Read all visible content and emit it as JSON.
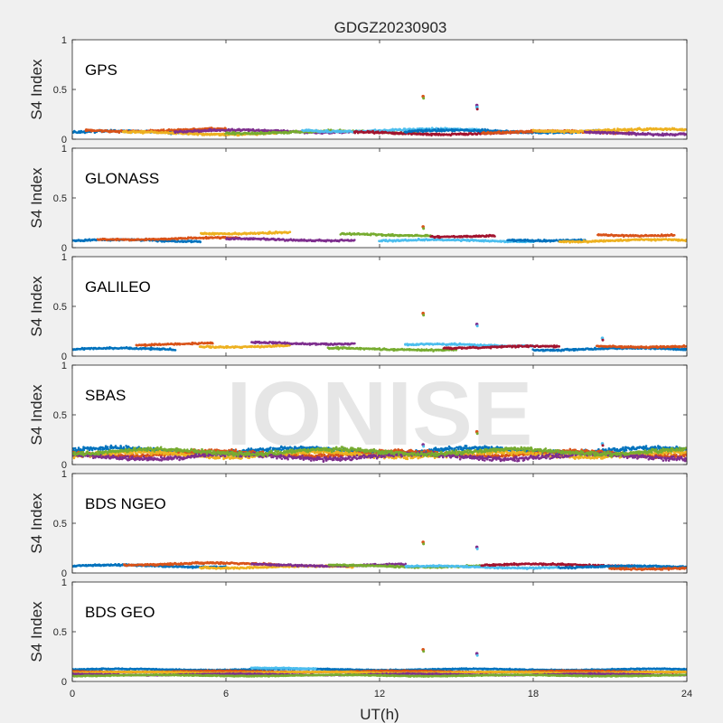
{
  "chart_data": {
    "type": "scatter",
    "title": "GDGZ20230903",
    "xlabel": "UT(h)",
    "ylabel": "S4 Index",
    "xlim": [
      0,
      24
    ],
    "ylim": [
      0,
      1
    ],
    "xticks": [
      "0",
      "6",
      "12",
      "18",
      "24"
    ],
    "yticks": [
      "0",
      "0.5",
      "1"
    ],
    "watermark": "IONISE",
    "grid": false,
    "palette": [
      "#0072BD",
      "#D95319",
      "#EDB120",
      "#7E2F8E",
      "#77AC30",
      "#4DBEEE",
      "#A2142F"
    ],
    "panels": [
      {
        "label": "GPS",
        "baseline": 0.08,
        "noise": 0.025,
        "segments": [
          {
            "x": [
              0,
              4.5
            ],
            "y": 0.07
          },
          {
            "x": [
              0.5,
              6
            ],
            "y": 0.09
          },
          {
            "x": [
              2,
              8
            ],
            "y": 0.06
          },
          {
            "x": [
              4,
              11
            ],
            "y": 0.08
          },
          {
            "x": [
              6,
              13.5
            ],
            "y": 0.07
          },
          {
            "x": [
              9,
              16
            ],
            "y": 0.09
          },
          {
            "x": [
              11,
              18
            ],
            "y": 0.06
          },
          {
            "x": [
              13,
              20.5
            ],
            "y": 0.08
          },
          {
            "x": [
              16,
              22
            ],
            "y": 0.07
          },
          {
            "x": [
              18,
              24
            ],
            "y": 0.09
          },
          {
            "x": [
              20,
              24
            ],
            "y": 0.06
          }
        ],
        "outliers": [
          {
            "x": 13.7,
            "y": 0.43
          },
          {
            "x": 15.8,
            "y": 0.34
          },
          {
            "x": 15.8,
            "y": 0.32
          }
        ]
      },
      {
        "label": "GLONASS",
        "baseline": 0.08,
        "noise": 0.02,
        "segments": [
          {
            "x": [
              0,
              5
            ],
            "y": 0.07
          },
          {
            "x": [
              1,
              6.5
            ],
            "y": 0.09
          },
          {
            "x": [
              5,
              8.5
            ],
            "y": 0.15
          },
          {
            "x": [
              6,
              11
            ],
            "y": 0.08
          },
          {
            "x": [
              10.5,
              14
            ],
            "y": 0.13
          },
          {
            "x": [
              12,
              18
            ],
            "y": 0.07
          },
          {
            "x": [
              14,
              16.5
            ],
            "y": 0.12
          },
          {
            "x": [
              17,
              20
            ],
            "y": 0.08
          },
          {
            "x": [
              20.5,
              23.5
            ],
            "y": 0.13
          },
          {
            "x": [
              19,
              24
            ],
            "y": 0.07
          }
        ],
        "outliers": [
          {
            "x": 13.7,
            "y": 0.21
          }
        ]
      },
      {
        "label": "GALILEO",
        "baseline": 0.08,
        "noise": 0.02,
        "segments": [
          {
            "x": [
              0,
              4
            ],
            "y": 0.07
          },
          {
            "x": [
              2.5,
              5.5
            ],
            "y": 0.12
          },
          {
            "x": [
              5,
              8.5
            ],
            "y": 0.1
          },
          {
            "x": [
              7,
              11
            ],
            "y": 0.13
          },
          {
            "x": [
              10,
              15
            ],
            "y": 0.07
          },
          {
            "x": [
              13,
              18
            ],
            "y": 0.11
          },
          {
            "x": [
              14.5,
              19
            ],
            "y": 0.09
          },
          {
            "x": [
              18,
              24
            ],
            "y": 0.07
          },
          {
            "x": [
              20.5,
              24
            ],
            "y": 0.1
          }
        ],
        "outliers": [
          {
            "x": 13.7,
            "y": 0.43
          },
          {
            "x": 15.8,
            "y": 0.32
          },
          {
            "x": 20.7,
            "y": 0.18
          }
        ]
      },
      {
        "label": "SBAS",
        "baseline": 0.11,
        "noise": 0.05,
        "segments": [
          {
            "x": [
              0,
              24
            ],
            "y": 0.14
          },
          {
            "x": [
              0,
              24
            ],
            "y": 0.11
          },
          {
            "x": [
              0,
              24
            ],
            "y": 0.1
          },
          {
            "x": [
              0,
              24
            ],
            "y": 0.08
          },
          {
            "x": [
              0,
              24
            ],
            "y": 0.13
          }
        ],
        "outliers": [
          {
            "x": 15.8,
            "y": 0.33
          },
          {
            "x": 13.7,
            "y": 0.2
          },
          {
            "x": 20.7,
            "y": 0.21
          }
        ]
      },
      {
        "label": "BDS NGEO",
        "baseline": 0.07,
        "noise": 0.02,
        "segments": [
          {
            "x": [
              0,
              6
            ],
            "y": 0.07
          },
          {
            "x": [
              2,
              8
            ],
            "y": 0.09
          },
          {
            "x": [
              5,
              11
            ],
            "y": 0.06
          },
          {
            "x": [
              7,
              13
            ],
            "y": 0.08
          },
          {
            "x": [
              10,
              16
            ],
            "y": 0.07
          },
          {
            "x": [
              13,
              19
            ],
            "y": 0.06
          },
          {
            "x": [
              16,
              22
            ],
            "y": 0.08
          },
          {
            "x": [
              19,
              24
            ],
            "y": 0.06
          },
          {
            "x": [
              21,
              24
            ],
            "y": 0.05
          }
        ],
        "outliers": [
          {
            "x": 13.7,
            "y": 0.31
          },
          {
            "x": 15.8,
            "y": 0.26
          }
        ]
      },
      {
        "label": "BDS GEO",
        "baseline": 0.09,
        "noise": 0.012,
        "segments": [
          {
            "x": [
              0,
              24
            ],
            "y": 0.12
          },
          {
            "x": [
              0,
              24
            ],
            "y": 0.1
          },
          {
            "x": [
              0,
              24
            ],
            "y": 0.09
          },
          {
            "x": [
              0,
              24
            ],
            "y": 0.07
          },
          {
            "x": [
              0,
              24
            ],
            "y": 0.06
          },
          {
            "x": [
              7,
              9.5
            ],
            "y": 0.13
          }
        ],
        "outliers": [
          {
            "x": 13.7,
            "y": 0.32
          },
          {
            "x": 15.8,
            "y": 0.28
          }
        ]
      }
    ]
  }
}
